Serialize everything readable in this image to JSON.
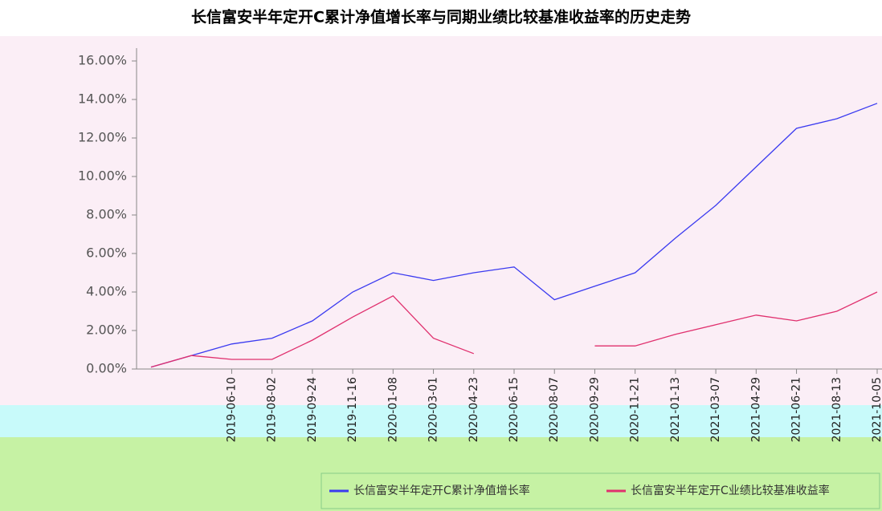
{
  "chart_data": {
    "type": "line",
    "title": "长信富安半年定开C累计净值增长率与同期业绩比较基准收益率的历史走势",
    "categories": [
      null,
      null,
      "2019-06-10",
      "2019-08-02",
      "2019-09-24",
      "2019-11-16",
      "2020-01-08",
      "2020-03-01",
      "2020-04-23",
      "2020-06-15",
      "2020-08-07",
      "2020-09-29",
      "2020-11-21",
      "2021-01-13",
      "2021-03-07",
      "2021-04-29",
      "2021-06-21",
      "2021-08-13",
      "2021-10-05"
    ],
    "series": [
      {
        "name": "长信富安半年定开C累计净值增长率",
        "color": "#3a3af0",
        "values": [
          0.1,
          0.7,
          1.3,
          1.6,
          2.5,
          4.0,
          5.0,
          4.6,
          5.0,
          5.3,
          3.6,
          4.3,
          5.0,
          6.8,
          8.5,
          10.5,
          12.5,
          13.0,
          13.8
        ]
      },
      {
        "name": "长信富安半年定开C业绩比较基准收益率",
        "color": "#e0306e",
        "values": [
          0.1,
          0.7,
          0.5,
          0.5,
          1.5,
          2.7,
          3.8,
          1.6,
          0.8,
          null,
          null,
          1.2,
          1.2,
          1.8,
          2.3,
          2.8,
          2.5,
          3.0,
          4.0
        ]
      }
    ],
    "ylim": [
      0,
      16
    ],
    "yticks": [
      {
        "value": 0,
        "label": "0.00%"
      },
      {
        "value": 2,
        "label": "2.00%"
      },
      {
        "value": 4,
        "label": "4.00%"
      },
      {
        "value": 6,
        "label": "6.00%"
      },
      {
        "value": 8,
        "label": "8.00%"
      },
      {
        "value": 10,
        "label": "10.00%"
      },
      {
        "value": 12,
        "label": "12.00%"
      },
      {
        "value": 14,
        "label": "14.00%"
      },
      {
        "value": 16,
        "label": "16.00%"
      }
    ],
    "grid": false
  }
}
